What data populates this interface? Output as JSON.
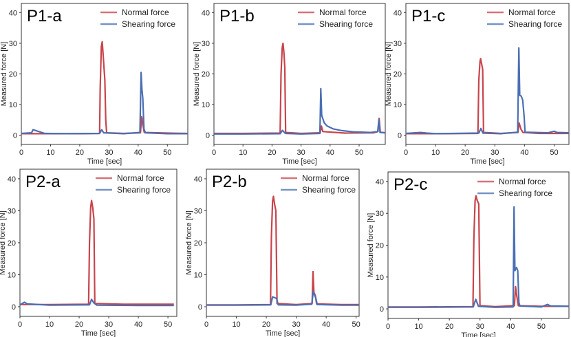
{
  "chart_data": [
    {
      "type": "line",
      "title": "P1-a",
      "xlabel": "Time [sec]",
      "ylabel": "Measured force [N]",
      "xlim": [
        0,
        57
      ],
      "ylim": [
        -3,
        43
      ],
      "xticks": [
        0,
        10,
        20,
        30,
        40,
        50
      ],
      "yticks": [
        0,
        10,
        20,
        30,
        40
      ],
      "grid": false,
      "legend": "top-right",
      "series": [
        {
          "name": "Normal force",
          "color": "#c9444c",
          "points": [
            [
              0,
              0.5
            ],
            [
              10,
              0.5
            ],
            [
              20,
              0.5
            ],
            [
              26.8,
              0.6
            ],
            [
              27,
              15
            ],
            [
              27.4,
              29
            ],
            [
              27.7,
              30.5
            ],
            [
              28.1,
              25
            ],
            [
              28.6,
              18
            ],
            [
              28.9,
              5
            ],
            [
              29.2,
              0.8
            ],
            [
              35,
              0.6
            ],
            [
              40.8,
              0.8
            ],
            [
              41.2,
              6
            ],
            [
              41.7,
              3
            ],
            [
              42.1,
              0.9
            ],
            [
              50,
              0.7
            ],
            [
              57,
              0.6
            ]
          ]
        },
        {
          "name": "Shearing force",
          "color": "#4a6fb3",
          "points": [
            [
              0,
              0.6
            ],
            [
              3.5,
              0.8
            ],
            [
              4,
              1.8
            ],
            [
              6,
              1.2
            ],
            [
              8,
              0.6
            ],
            [
              15,
              0.5
            ],
            [
              26.8,
              0.6
            ],
            [
              27.5,
              1.8
            ],
            [
              28.2,
              0.8
            ],
            [
              35,
              0.5
            ],
            [
              40.6,
              0.9
            ],
            [
              41,
              20.5
            ],
            [
              41.3,
              15
            ],
            [
              41.6,
              12
            ],
            [
              42,
              2
            ],
            [
              42.5,
              0.8
            ],
            [
              50,
              0.5
            ],
            [
              57,
              0.5
            ]
          ]
        }
      ]
    },
    {
      "type": "line",
      "title": "P1-b",
      "xlabel": "Time [sec]",
      "ylabel": "Measured force [N]",
      "xlim": [
        0,
        59
      ],
      "ylim": [
        -3,
        43
      ],
      "xticks": [
        0,
        10,
        20,
        30,
        40,
        50
      ],
      "yticks": [
        0,
        10,
        20,
        30,
        40
      ],
      "grid": false,
      "legend": "top-right",
      "series": [
        {
          "name": "Normal force",
          "color": "#c9444c",
          "points": [
            [
              0,
              0.6
            ],
            [
              10,
              0.6
            ],
            [
              22.8,
              0.7
            ],
            [
              23.1,
              20
            ],
            [
              23.5,
              28.5
            ],
            [
              23.8,
              30
            ],
            [
              24.1,
              27
            ],
            [
              24.4,
              22
            ],
            [
              24.7,
              0.9
            ],
            [
              30,
              0.6
            ],
            [
              36.6,
              0.8
            ],
            [
              37,
              3
            ],
            [
              37.5,
              1.2
            ],
            [
              45,
              0.7
            ],
            [
              55,
              0.8
            ],
            [
              56.5,
              1.2
            ],
            [
              56.9,
              5.5
            ],
            [
              57.3,
              1
            ],
            [
              59,
              0.8
            ]
          ]
        },
        {
          "name": "Shearing force",
          "color": "#4a6fb3",
          "points": [
            [
              0,
              0.4
            ],
            [
              10,
              0.4
            ],
            [
              22.8,
              0.5
            ],
            [
              23.6,
              1.6
            ],
            [
              24.6,
              0.6
            ],
            [
              30,
              0.4
            ],
            [
              36.5,
              0.6
            ],
            [
              36.8,
              15.2
            ],
            [
              37.1,
              6.5
            ],
            [
              38,
              4
            ],
            [
              39,
              3
            ],
            [
              41,
              2.1
            ],
            [
              44,
              1.5
            ],
            [
              48,
              1.1
            ],
            [
              54,
              0.9
            ],
            [
              56.4,
              1.2
            ],
            [
              56.8,
              5
            ],
            [
              57.2,
              0.9
            ],
            [
              59,
              0.8
            ]
          ]
        }
      ]
    },
    {
      "type": "line",
      "title": "P1-c",
      "xlabel": "Time [sec]",
      "ylabel": "Measured force [N]",
      "xlim": [
        0,
        55
      ],
      "ylim": [
        -3,
        43
      ],
      "xticks": [
        0,
        10,
        20,
        30,
        40,
        50
      ],
      "yticks": [
        0,
        10,
        20,
        30,
        40
      ],
      "grid": false,
      "legend": "top-right",
      "series": [
        {
          "name": "Normal force",
          "color": "#c9444c",
          "points": [
            [
              0,
              0.5
            ],
            [
              10,
              0.5
            ],
            [
              24.3,
              0.6
            ],
            [
              24.6,
              18
            ],
            [
              25,
              24
            ],
            [
              25.2,
              25
            ],
            [
              25.6,
              23
            ],
            [
              25.9,
              21.5
            ],
            [
              26.2,
              0.9
            ],
            [
              32,
              0.6
            ],
            [
              37.8,
              0.9
            ],
            [
              38.2,
              4
            ],
            [
              38.8,
              2
            ],
            [
              39.5,
              0.9
            ],
            [
              45,
              0.6
            ],
            [
              55,
              0.6
            ]
          ]
        },
        {
          "name": "Shearing force",
          "color": "#4a6fb3",
          "points": [
            [
              0,
              0.6
            ],
            [
              5,
              0.9
            ],
            [
              7,
              0.7
            ],
            [
              10,
              0.5
            ],
            [
              24.6,
              0.7
            ],
            [
              25.3,
              2.2
            ],
            [
              26,
              0.7
            ],
            [
              32,
              0.5
            ],
            [
              37.7,
              1
            ],
            [
              38.1,
              28.5
            ],
            [
              38.4,
              13
            ],
            [
              38.9,
              12.8
            ],
            [
              39.4,
              11.5
            ],
            [
              39.9,
              6
            ],
            [
              40.2,
              1
            ],
            [
              48,
              0.8
            ],
            [
              50,
              1.3
            ],
            [
              51,
              0.9
            ],
            [
              55,
              0.8
            ]
          ]
        }
      ]
    },
    {
      "type": "line",
      "title": "P2-a",
      "xlabel": "Time [sec]",
      "ylabel": "Measured force [N]",
      "xlim": [
        0,
        53
      ],
      "ylim": [
        -3,
        43
      ],
      "xticks": [
        0,
        10,
        20,
        30,
        40,
        50
      ],
      "yticks": [
        0,
        10,
        20,
        30,
        40
      ],
      "grid": false,
      "legend": "top-right",
      "series": [
        {
          "name": "Normal force",
          "color": "#c9444c",
          "points": [
            [
              0,
              0.7
            ],
            [
              10,
              0.7
            ],
            [
              23.2,
              0.8
            ],
            [
              23.5,
              20
            ],
            [
              23.9,
              31
            ],
            [
              24.2,
              33.2
            ],
            [
              24.6,
              31
            ],
            [
              25,
              27.5
            ],
            [
              25.3,
              1
            ],
            [
              35,
              0.8
            ],
            [
              45,
              0.8
            ],
            [
              52,
              0.8
            ]
          ]
        },
        {
          "name": "Shearing force",
          "color": "#4a6fb3",
          "points": [
            [
              0,
              0.6
            ],
            [
              1.5,
              1.4
            ],
            [
              2.5,
              0.9
            ],
            [
              10,
              0.5
            ],
            [
              23.5,
              0.6
            ],
            [
              24.2,
              2.3
            ],
            [
              25,
              1.2
            ],
            [
              26,
              0.5
            ],
            [
              40,
              0.4
            ],
            [
              52,
              0.4
            ]
          ]
        }
      ]
    },
    {
      "type": "line",
      "title": "P2-b",
      "xlabel": "Time [sec]",
      "ylabel": "Measured force [N]",
      "xlim": [
        0,
        51
      ],
      "ylim": [
        -3,
        43
      ],
      "xticks": [
        0,
        10,
        20,
        30,
        40,
        50
      ],
      "yticks": [
        0,
        10,
        20,
        30,
        40
      ],
      "grid": false,
      "legend": "top-right",
      "series": [
        {
          "name": "Normal force",
          "color": "#c9444c",
          "points": [
            [
              0,
              0.6
            ],
            [
              10,
              0.6
            ],
            [
              21.4,
              0.7
            ],
            [
              21.7,
              22
            ],
            [
              22.1,
              33
            ],
            [
              22.4,
              34.5
            ],
            [
              22.8,
              32
            ],
            [
              23.2,
              30
            ],
            [
              23.6,
              1
            ],
            [
              30,
              0.7
            ],
            [
              35.3,
              1
            ],
            [
              35.6,
              11
            ],
            [
              35.9,
              4.5
            ],
            [
              36.4,
              3.5
            ],
            [
              36.8,
              0.9
            ],
            [
              45,
              0.7
            ],
            [
              51,
              0.7
            ]
          ]
        },
        {
          "name": "Shearing force",
          "color": "#4a6fb3",
          "points": [
            [
              0,
              0.5
            ],
            [
              10,
              0.5
            ],
            [
              21.5,
              0.6
            ],
            [
              22.1,
              3.1
            ],
            [
              23.4,
              2.6
            ],
            [
              24,
              0.6
            ],
            [
              30,
              0.5
            ],
            [
              35.2,
              0.8
            ],
            [
              35.7,
              4.8
            ],
            [
              36.6,
              2.5
            ],
            [
              37,
              0.7
            ],
            [
              45,
              0.5
            ],
            [
              51,
              0.5
            ]
          ]
        }
      ]
    },
    {
      "type": "line",
      "title": "P2-c",
      "xlabel": "Time [sec]",
      "ylabel": "Measured force [N]",
      "xlim": [
        0,
        59
      ],
      "ylim": [
        -3,
        43
      ],
      "xticks": [
        0,
        10,
        20,
        30,
        40,
        50
      ],
      "yticks": [
        0,
        10,
        20,
        30,
        40
      ],
      "grid": false,
      "legend": "top-right",
      "series": [
        {
          "name": "Normal force",
          "color": "#c9444c",
          "points": [
            [
              0,
              0.6
            ],
            [
              10,
              0.6
            ],
            [
              27.7,
              0.7
            ],
            [
              28,
              22
            ],
            [
              28.4,
              34
            ],
            [
              28.7,
              35.5
            ],
            [
              29.1,
              34
            ],
            [
              29.6,
              33
            ],
            [
              30,
              1
            ],
            [
              35,
              0.7
            ],
            [
              41.2,
              1
            ],
            [
              41.6,
              7
            ],
            [
              42,
              4
            ],
            [
              42.5,
              1
            ],
            [
              50,
              0.8
            ],
            [
              59,
              0.8
            ]
          ]
        },
        {
          "name": "Shearing force",
          "color": "#4a6fb3",
          "points": [
            [
              0,
              0.5
            ],
            [
              10,
              0.5
            ],
            [
              27.8,
              0.6
            ],
            [
              28.6,
              3
            ],
            [
              29.5,
              0.8
            ],
            [
              35,
              0.5
            ],
            [
              40.8,
              0.6
            ],
            [
              41.1,
              32
            ],
            [
              41.4,
              12
            ],
            [
              41.9,
              13
            ],
            [
              42.3,
              12
            ],
            [
              42.7,
              2
            ],
            [
              43,
              0.9
            ],
            [
              50,
              0.6
            ],
            [
              52,
              1.4
            ],
            [
              53,
              0.9
            ],
            [
              59,
              0.8
            ]
          ]
        }
      ]
    }
  ]
}
